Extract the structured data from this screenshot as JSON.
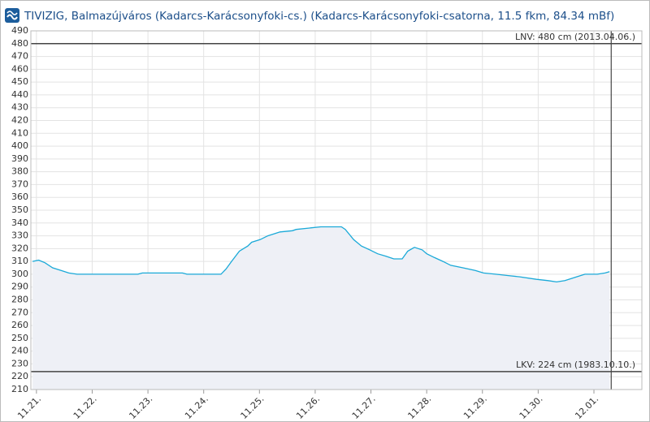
{
  "chart_data": {
    "type": "line",
    "title": "TIVIZIG, Balmazújváros (Kadarcs-Karácsonyfoki-cs.) (Kadarcs-Karácsonyfoki-csatorna, 11.5 fkm, 84.34 mBf)",
    "series": [
      {
        "color": "#1aa9d8",
        "fill": "#eef0f6",
        "x": [
          -0.07,
          0.04,
          0.15,
          0.29,
          0.44,
          0.58,
          0.73,
          1.82,
          1.9,
          2.62,
          2.7,
          3.31,
          3.4,
          3.5,
          3.64,
          3.79,
          3.86,
          4.01,
          4.15,
          4.37,
          4.59,
          4.66,
          4.88,
          5.1,
          5.47,
          5.54,
          5.69,
          5.83,
          5.98,
          6.12,
          6.27,
          6.41,
          6.56,
          6.66,
          6.78,
          6.92,
          7.0,
          7.14,
          7.29,
          7.43,
          7.65,
          7.87,
          8.02,
          8.24,
          8.45,
          8.67,
          8.97,
          9.18,
          9.33,
          9.48,
          9.69,
          9.84,
          10.06,
          10.2,
          10.28
        ],
        "values": [
          310,
          311,
          309,
          305,
          303,
          301,
          300,
          300,
          301,
          301,
          300,
          300,
          304,
          310,
          318,
          322,
          325,
          327,
          330,
          333,
          334,
          335,
          336,
          337,
          337,
          335,
          327,
          322,
          319,
          316,
          314,
          312,
          312,
          318,
          321,
          319,
          316,
          313,
          310,
          307,
          305,
          303,
          301,
          300,
          299,
          298,
          296,
          295,
          294,
          295,
          298,
          300,
          300,
          301,
          302
        ]
      }
    ],
    "plot_lines": [
      {
        "value": 480,
        "label": "LNV: 480 cm (2013.04.06.)"
      },
      {
        "value": 224,
        "label": "LKV: 224 cm (1983.10.10.)"
      }
    ],
    "now_line": 10.31,
    "xlim": [
      -0.1,
      10.86
    ],
    "xticks": [
      {
        "value": 0,
        "label": "11.21."
      },
      {
        "value": 1,
        "label": "11.22."
      },
      {
        "value": 2,
        "label": "11.23."
      },
      {
        "value": 3,
        "label": "11.24."
      },
      {
        "value": 4,
        "label": "11.25."
      },
      {
        "value": 5,
        "label": "11.26."
      },
      {
        "value": 6,
        "label": "11.27."
      },
      {
        "value": 7,
        "label": "11.28."
      },
      {
        "value": 8,
        "label": "11.29."
      },
      {
        "value": 9,
        "label": "11.30."
      },
      {
        "value": 10,
        "label": "12.01."
      }
    ],
    "ylim": [
      210,
      490
    ],
    "yticks": [
      210,
      220,
      230,
      240,
      250,
      260,
      270,
      280,
      290,
      300,
      310,
      320,
      330,
      340,
      350,
      360,
      370,
      380,
      390,
      400,
      410,
      420,
      430,
      440,
      450,
      460,
      470,
      480,
      490
    ],
    "grid": true
  }
}
